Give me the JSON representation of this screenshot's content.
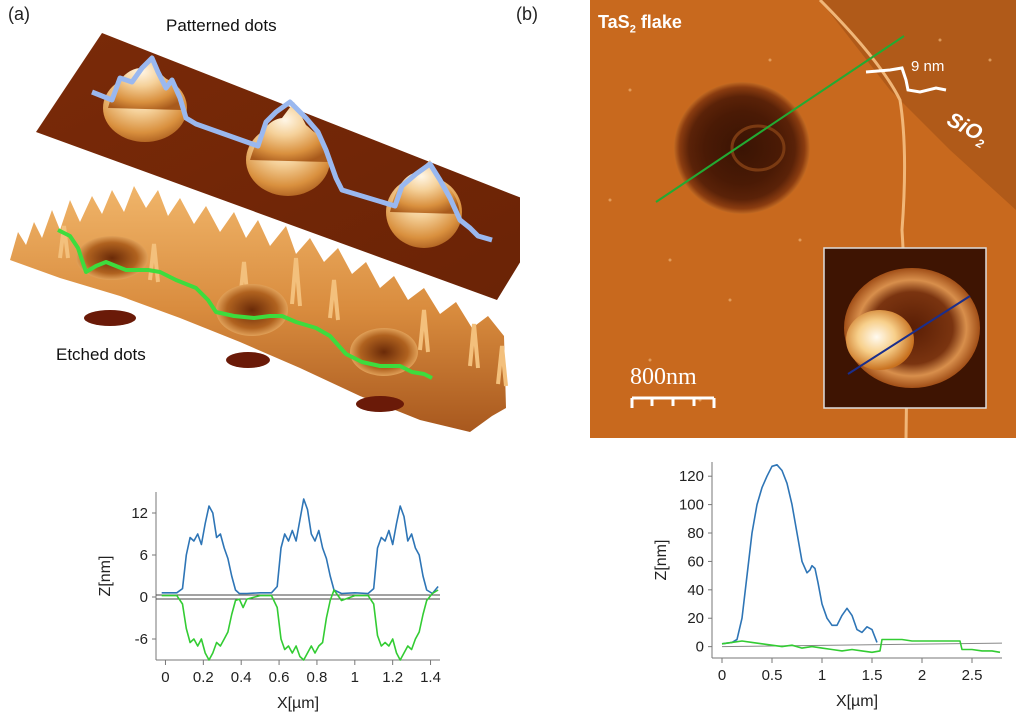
{
  "figure": {
    "panel_a": {
      "letter": "(a)",
      "top_label": "Patterned dots",
      "bottom_label": "Etched dots"
    },
    "panel_b": {
      "letter": "(b)",
      "flake_label_main": "TaS",
      "flake_label_sub": "2",
      "flake_label_tail": " flake",
      "substrate_label_main": "SiO",
      "substrate_label_sub": "2",
      "step_label": "9 nm",
      "scalebar_label": "800nm"
    }
  },
  "colors": {
    "patterned_profile": "#2e75b6",
    "etched_profile": "#33cc33",
    "afm_dark": "#5a1e05",
    "afm_mid": "#c8651a",
    "afm_light": "#f6c27a",
    "line_green": "#22aa33",
    "line_blue": "#1a2e8c"
  },
  "chart_data": [
    {
      "type": "line",
      "xlabel": "X[µm]",
      "ylabel": "Z[nm]",
      "xlim": [
        -0.05,
        1.45
      ],
      "ylim": [
        -9,
        15
      ],
      "xticks": [
        "0",
        "0.2",
        "0.4",
        "0.6",
        "0.8",
        "1",
        "1.2",
        "1.4"
      ],
      "xtick_values": [
        0,
        0.2,
        0.4,
        0.6,
        0.8,
        1.0,
        1.2,
        1.4
      ],
      "yticks": [
        "12",
        "6",
        "0",
        "-6"
      ],
      "ytick_values": [
        12,
        6,
        0,
        -6
      ],
      "baseline": 0,
      "series": [
        {
          "color": "#2e75b6",
          "x": [
            -0.02,
            0.06,
            0.09,
            0.11,
            0.13,
            0.15,
            0.17,
            0.19,
            0.21,
            0.23,
            0.25,
            0.27,
            0.29,
            0.31,
            0.33,
            0.35,
            0.37,
            0.39,
            0.43,
            0.5,
            0.56,
            0.59,
            0.61,
            0.63,
            0.65,
            0.67,
            0.69,
            0.71,
            0.73,
            0.75,
            0.77,
            0.79,
            0.81,
            0.83,
            0.85,
            0.87,
            0.89,
            0.93,
            1.0,
            1.07,
            1.1,
            1.12,
            1.14,
            1.16,
            1.18,
            1.2,
            1.22,
            1.24,
            1.26,
            1.28,
            1.3,
            1.32,
            1.34,
            1.36,
            1.38,
            1.41,
            1.44
          ],
          "y": [
            0.6,
            0.6,
            1.2,
            6.0,
            8.5,
            8.0,
            9.0,
            7.5,
            10.5,
            13.0,
            12.0,
            8.5,
            9.0,
            7.0,
            5.5,
            3.0,
            1.0,
            0.5,
            0.5,
            0.6,
            0.6,
            1.5,
            7.0,
            9.0,
            8.0,
            9.5,
            8.0,
            11.0,
            14.0,
            12.5,
            9.0,
            8.0,
            9.5,
            7.0,
            5.5,
            3.0,
            1.0,
            0.5,
            0.6,
            0.5,
            1.2,
            7.0,
            8.5,
            8.0,
            9.5,
            7.5,
            10.5,
            13.0,
            11.5,
            8.0,
            9.0,
            7.0,
            6.0,
            3.0,
            1.0,
            0.5,
            1.5
          ]
        },
        {
          "color": "#33cc33",
          "x": [
            -0.02,
            0.06,
            0.09,
            0.11,
            0.13,
            0.15,
            0.17,
            0.19,
            0.21,
            0.23,
            0.25,
            0.27,
            0.29,
            0.31,
            0.33,
            0.35,
            0.37,
            0.39,
            0.41,
            0.43,
            0.5,
            0.56,
            0.59,
            0.61,
            0.63,
            0.65,
            0.67,
            0.69,
            0.71,
            0.73,
            0.75,
            0.77,
            0.79,
            0.81,
            0.83,
            0.85,
            0.87,
            0.89,
            0.93,
            1.0,
            1.07,
            1.1,
            1.12,
            1.14,
            1.16,
            1.18,
            1.2,
            1.22,
            1.24,
            1.26,
            1.28,
            1.3,
            1.32,
            1.34,
            1.36,
            1.38,
            1.41,
            1.44
          ],
          "y": [
            0.2,
            0.2,
            -1.0,
            -4.5,
            -6.5,
            -6.0,
            -7.0,
            -6.0,
            -8.0,
            -9.0,
            -8.0,
            -6.5,
            -7.0,
            -6.0,
            -5.0,
            -2.5,
            -0.5,
            -0.3,
            -1.5,
            -0.3,
            0.2,
            0.2,
            -1.5,
            -6.0,
            -7.5,
            -7.0,
            -8.0,
            -7.0,
            -8.5,
            -9.0,
            -8.0,
            -7.0,
            -8.0,
            -7.0,
            -6.5,
            -3.0,
            -0.5,
            1.0,
            -0.5,
            0.2,
            0.2,
            -1.0,
            -5.5,
            -7.0,
            -6.5,
            -7.0,
            -6.0,
            -8.0,
            -9.0,
            -8.0,
            -7.0,
            -7.5,
            -6.0,
            -5.0,
            -2.5,
            -0.5,
            0.5,
            1.0
          ]
        }
      ]
    },
    {
      "type": "line",
      "xlabel": "X[µm]",
      "ylabel": "Z[nm]",
      "xlim": [
        -0.1,
        2.8
      ],
      "ylim": [
        -8,
        130
      ],
      "xticks": [
        "0",
        "0.5",
        "1",
        "1.5",
        "2",
        "2.5"
      ],
      "xtick_values": [
        0,
        0.5,
        1.0,
        1.5,
        2.0,
        2.5
      ],
      "yticks": [
        "120",
        "100",
        "80",
        "60",
        "40",
        "20",
        "0"
      ],
      "ytick_values": [
        120,
        100,
        80,
        60,
        40,
        20,
        0
      ],
      "reference_line": {
        "x": [
          0,
          2.8
        ],
        "y": [
          0,
          2.5
        ]
      },
      "series": [
        {
          "color": "#2e75b6",
          "x": [
            0.0,
            0.1,
            0.15,
            0.2,
            0.25,
            0.3,
            0.35,
            0.4,
            0.45,
            0.5,
            0.55,
            0.6,
            0.65,
            0.7,
            0.75,
            0.8,
            0.85,
            0.88,
            0.9,
            0.93,
            0.96,
            1.0,
            1.05,
            1.1,
            1.15,
            1.2,
            1.25,
            1.3,
            1.35,
            1.4,
            1.45,
            1.5,
            1.55
          ],
          "y": [
            2,
            3,
            5,
            20,
            50,
            80,
            100,
            112,
            120,
            127,
            128,
            124,
            115,
            100,
            80,
            60,
            52,
            54,
            57,
            55,
            45,
            30,
            20,
            15,
            15,
            22,
            27,
            22,
            12,
            10,
            14,
            12,
            3
          ]
        },
        {
          "color": "#33cc33",
          "x": [
            0.0,
            0.1,
            0.2,
            0.3,
            0.4,
            0.5,
            0.6,
            0.7,
            0.8,
            0.9,
            1.0,
            1.1,
            1.2,
            1.3,
            1.4,
            1.5,
            1.58,
            1.6,
            1.7,
            1.8,
            1.9,
            2.0,
            2.1,
            2.2,
            2.3,
            2.38,
            2.4,
            2.5,
            2.6,
            2.7,
            2.78
          ],
          "y": [
            2,
            3,
            4,
            3,
            2,
            1,
            0,
            1,
            -1,
            0,
            -1,
            -2,
            -3,
            -2,
            -3,
            -4,
            -3,
            5,
            5,
            5,
            4,
            4,
            4,
            4,
            4,
            4,
            -2,
            -2,
            -3,
            -3,
            -4
          ]
        }
      ]
    }
  ]
}
